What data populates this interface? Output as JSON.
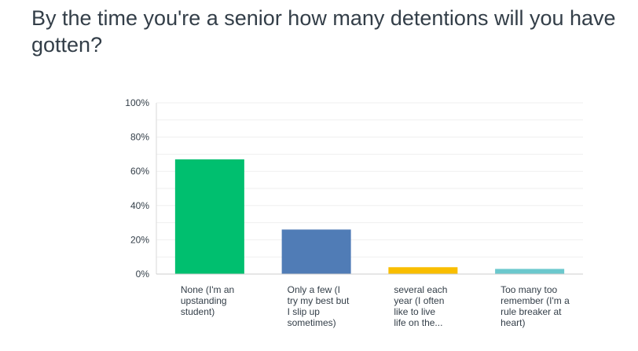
{
  "title": "By the time you're a senior how many detentions will you have\ngotten?",
  "chart_data": {
    "type": "bar",
    "title": "By the time you're a senior how many detentions will you have gotten?",
    "xlabel": "",
    "ylabel": "",
    "ylim": [
      0,
      100
    ],
    "yticks": [
      "100%",
      "80%",
      "60%",
      "40%",
      "20%",
      "0%"
    ],
    "ytick_values": [
      100,
      80,
      60,
      40,
      20,
      0
    ],
    "grid": true,
    "categories": [
      "None (I'm an\nupstanding\nstudent)",
      "Only a few (I\ntry my best but\nI slip up\nsometimes)",
      "several each\nyear (I often\nlike to live\nlife on the...",
      "Too many too\nremember (I'm a\nrule breaker at\nheart)"
    ],
    "values": [
      67,
      26,
      4,
      3
    ],
    "colors": [
      "#00bf6f",
      "#507cb6",
      "#f9be00",
      "#6bc8cd"
    ]
  }
}
